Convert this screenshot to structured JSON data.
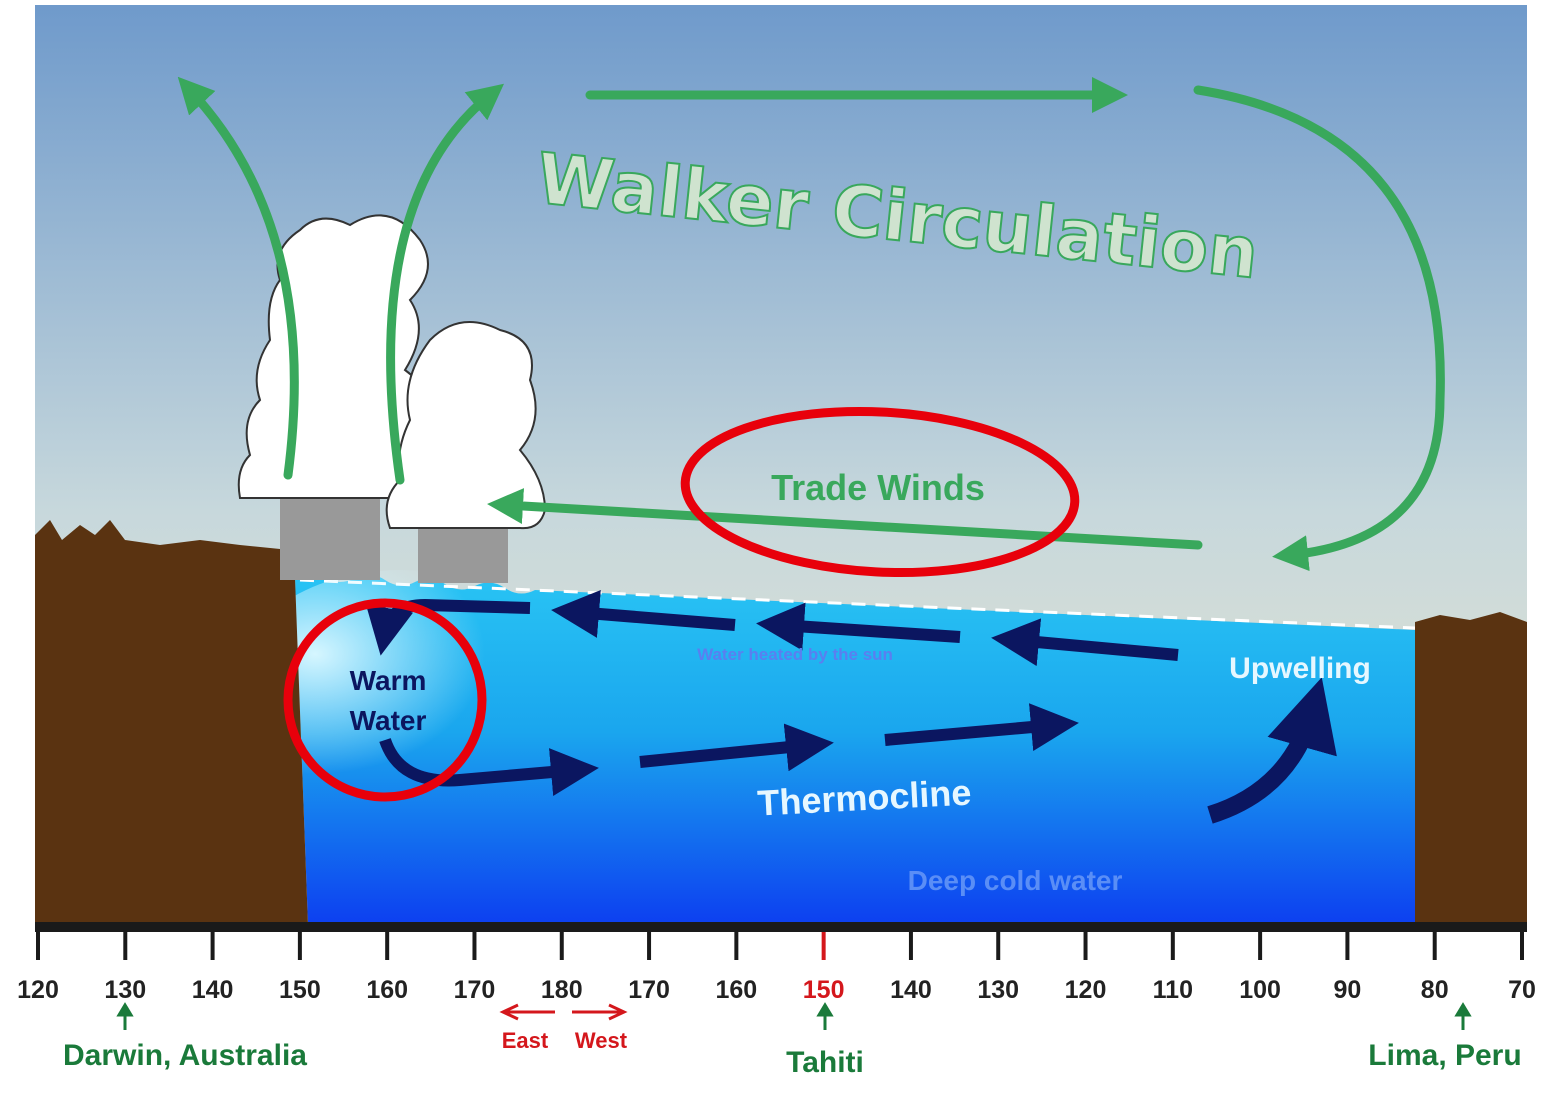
{
  "title": "Walker Circulation",
  "labels": {
    "trade_winds": "Trade Winds",
    "warm": "Warm",
    "water": "Water",
    "heated": "Water heated by the sun",
    "upwelling": "Upwelling",
    "thermocline": "Thermocline",
    "deep": "Deep cold water"
  },
  "axis": {
    "ticks": [
      "120",
      "130",
      "140",
      "150",
      "160",
      "170",
      "180",
      "170",
      "160",
      "150",
      "140",
      "130",
      "120",
      "110",
      "100",
      "90",
      "80",
      "70"
    ],
    "east": "East",
    "west": "West"
  },
  "places": {
    "darwin": "Darwin, Australia",
    "tahiti": "Tahiti",
    "lima": "Lima, Peru"
  }
}
